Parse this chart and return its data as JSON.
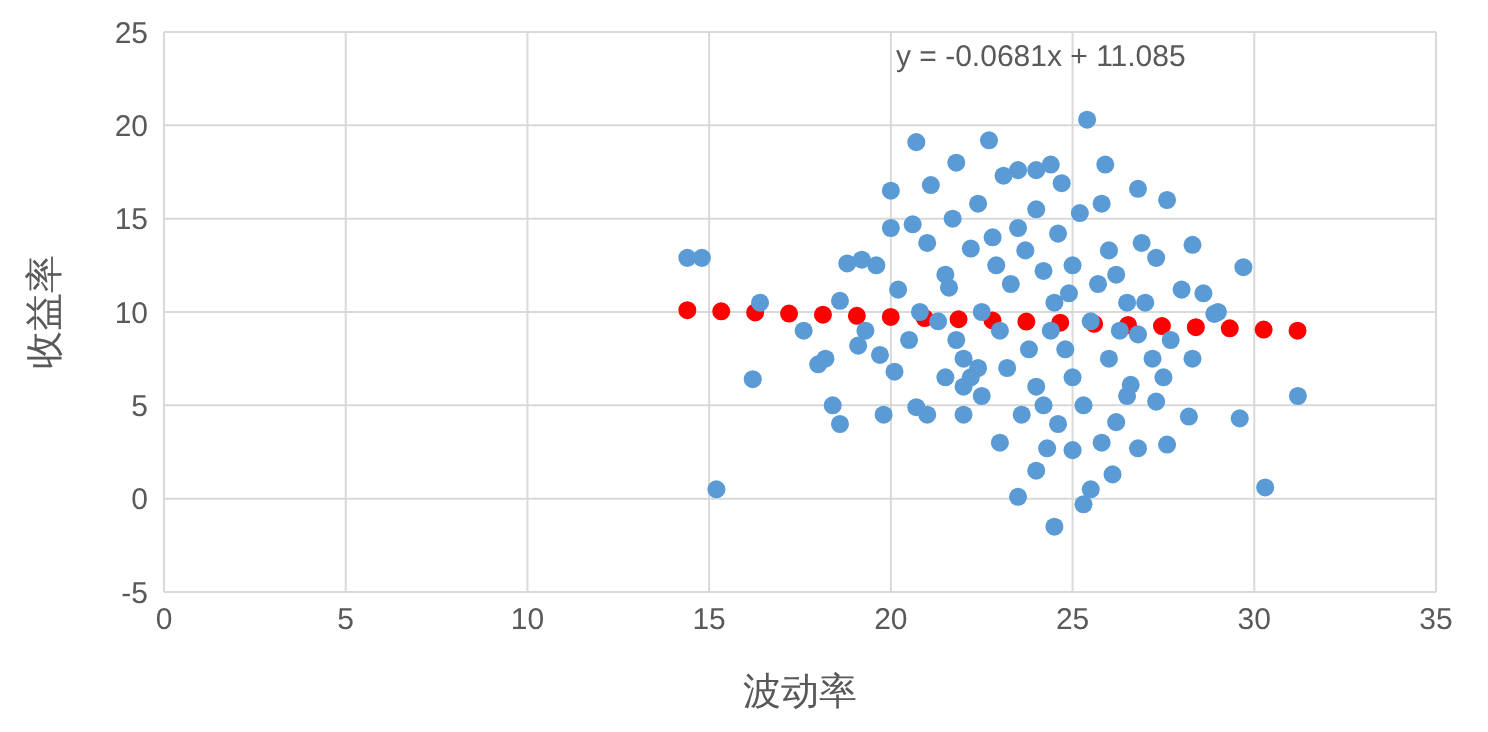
{
  "chart_data": {
    "type": "scatter",
    "xlabel": "波动率",
    "ylabel": "收益率",
    "annotations": [
      "y = -0.0681x + 11.085"
    ],
    "xlim": [
      0,
      35
    ],
    "xticks": [
      0,
      5,
      10,
      15,
      20,
      25,
      30,
      35
    ],
    "ylim": [
      -5,
      25
    ],
    "yticks": [
      -5,
      0,
      5,
      10,
      15,
      20,
      25
    ],
    "grid": true,
    "legend": false,
    "series": [
      {
        "color": "#5b9bd5",
        "marker": "circle",
        "x": [
          14.4,
          14.8,
          15.2,
          16.2,
          16.4,
          18.6,
          18.4,
          18.6,
          19.8,
          18.2,
          18,
          17.6,
          18.8,
          19.2,
          20,
          20,
          20.7,
          21.1,
          21.8,
          22.7,
          23.1,
          23.5,
          24,
          24.4,
          25.4,
          25.9,
          26.8,
          27.6,
          28.3,
          29.7,
          28.6,
          29,
          27.7,
          28.3,
          28.2,
          29.6,
          31.2,
          30.3,
          27.6,
          26.8,
          26.1,
          26.2,
          25.5,
          25.3,
          24.5,
          23.5,
          24,
          24.3,
          25,
          23,
          22,
          21,
          20.7,
          22.5,
          27.3,
          27.5,
          26.6,
          27.2,
          28.9,
          28,
          26.9,
          27.3,
          26,
          25.8,
          25.2,
          24.7,
          24,
          22.4,
          21.7,
          22.2,
          21,
          20.6,
          19.6,
          20.2,
          20.8,
          19.3,
          19.7,
          20.1,
          19.1,
          21.6,
          21.8,
          22,
          22.4,
          23,
          23.3,
          23.7,
          24.2,
          24.5,
          24.8,
          25,
          25.3,
          24,
          23.6,
          24.6,
          25.8,
          26.5,
          26,
          25.5,
          26.5,
          27,
          26.2,
          25,
          23.5,
          22.9,
          22.5,
          22,
          21.5,
          21.3,
          20.5,
          23.2,
          23.8,
          24.4,
          24.9,
          25.7,
          26.8,
          22.8,
          24.6,
          21.5,
          22.2,
          24.2,
          26.3
        ],
        "values": [
          12.9,
          12.9,
          0.5,
          6.4,
          10.5,
          10.6,
          5,
          4,
          4.5,
          7.5,
          7.2,
          9,
          12.6,
          12.8,
          14.5,
          16.5,
          19.1,
          16.8,
          18,
          19.2,
          17.3,
          17.6,
          17.6,
          17.9,
          20.3,
          17.9,
          16.6,
          16,
          13.6,
          12.4,
          11,
          10,
          8.5,
          7.5,
          4.4,
          4.3,
          5.5,
          0.6,
          2.9,
          2.7,
          1.3,
          4.1,
          0.5,
          -0.3,
          -1.5,
          0.1,
          1.5,
          2.7,
          2.6,
          3,
          4.5,
          4.5,
          4.9,
          5.5,
          5.2,
          6.5,
          6.1,
          7.5,
          9.9,
          11.2,
          13.7,
          12.9,
          13.3,
          15.8,
          15.3,
          16.9,
          15.5,
          15.8,
          15,
          13.4,
          13.7,
          14.7,
          12.5,
          11.2,
          10,
          9,
          7.7,
          6.8,
          8.2,
          11.3,
          8.5,
          6,
          7,
          9,
          11.5,
          13.3,
          12.2,
          10.5,
          8,
          6.5,
          5,
          6,
          4.5,
          4,
          3,
          5.5,
          7.5,
          9.5,
          10.5,
          10.5,
          12,
          12.5,
          14.5,
          12.5,
          10,
          7.5,
          6.5,
          9.5,
          8.5,
          7,
          8,
          9,
          11,
          11.5,
          8.8,
          14,
          14.2,
          12,
          6.5,
          5,
          9
        ]
      },
      {
        "type": "line",
        "color": "#ff0000",
        "marker": "none",
        "line_style": "dotted",
        "x": [
          14.4,
          31.2
        ],
        "values": [
          10.1,
          9.0
        ]
      }
    ]
  }
}
